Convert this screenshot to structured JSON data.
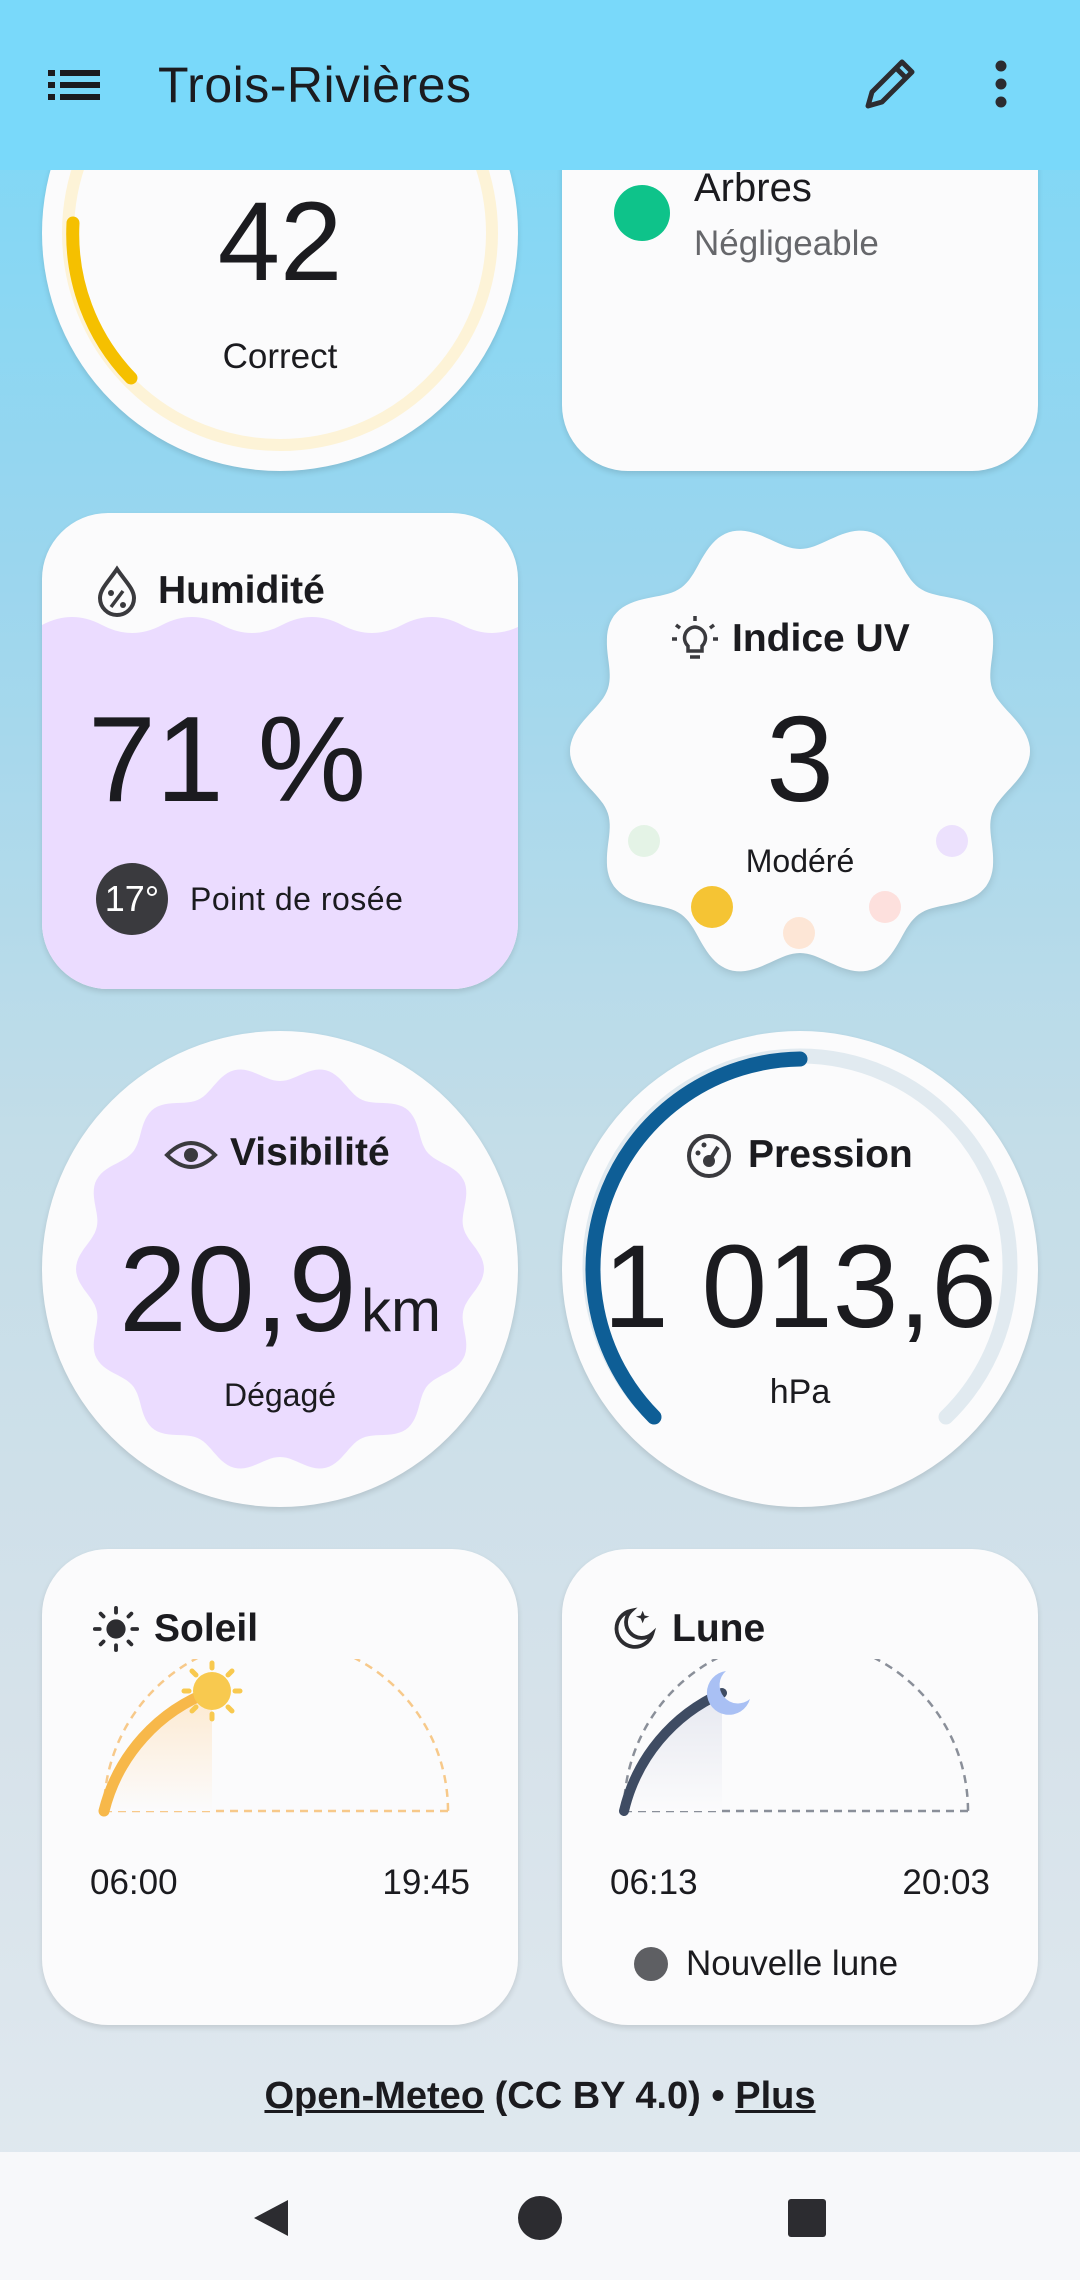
{
  "appbar": {
    "title": "Trois-Rivières",
    "menu_icon": "menu-icon",
    "edit_icon": "edit-icon",
    "more_icon": "more-vert-icon"
  },
  "air_quality": {
    "value": "42",
    "status": "Correct",
    "accent": "#f5c000",
    "level": 0.21
  },
  "pollen": {
    "label": "Arbres",
    "status": "Négligeable",
    "dot_color": "#0ec38a"
  },
  "humidity": {
    "title": "Humidité",
    "value": "71 %",
    "dew_point_value": "17°",
    "dew_point_label": "Point de rosée",
    "fill_color": "#ebdcff"
  },
  "uv": {
    "title": "Indice UV",
    "value": "3",
    "status": "Modéré"
  },
  "visibility": {
    "title": "Visibilité",
    "value": "20,9",
    "unit": "km",
    "status": "Dégagé"
  },
  "pressure": {
    "title": "Pression",
    "value": "1 013,6",
    "unit": "hPa",
    "accent": "#0e5e96"
  },
  "sun": {
    "title": "Soleil",
    "rise": "06:00",
    "set": "19:45",
    "accent": "#f7b84a"
  },
  "moon": {
    "title": "Lune",
    "rise": "06:13",
    "set": "20:03",
    "phase": "Nouvelle lune",
    "accent": "#3f4c63"
  },
  "footer": {
    "source": "Open-Meteo",
    "license": "(CC BY 4.0)",
    "separator": "•",
    "more": "Plus"
  }
}
